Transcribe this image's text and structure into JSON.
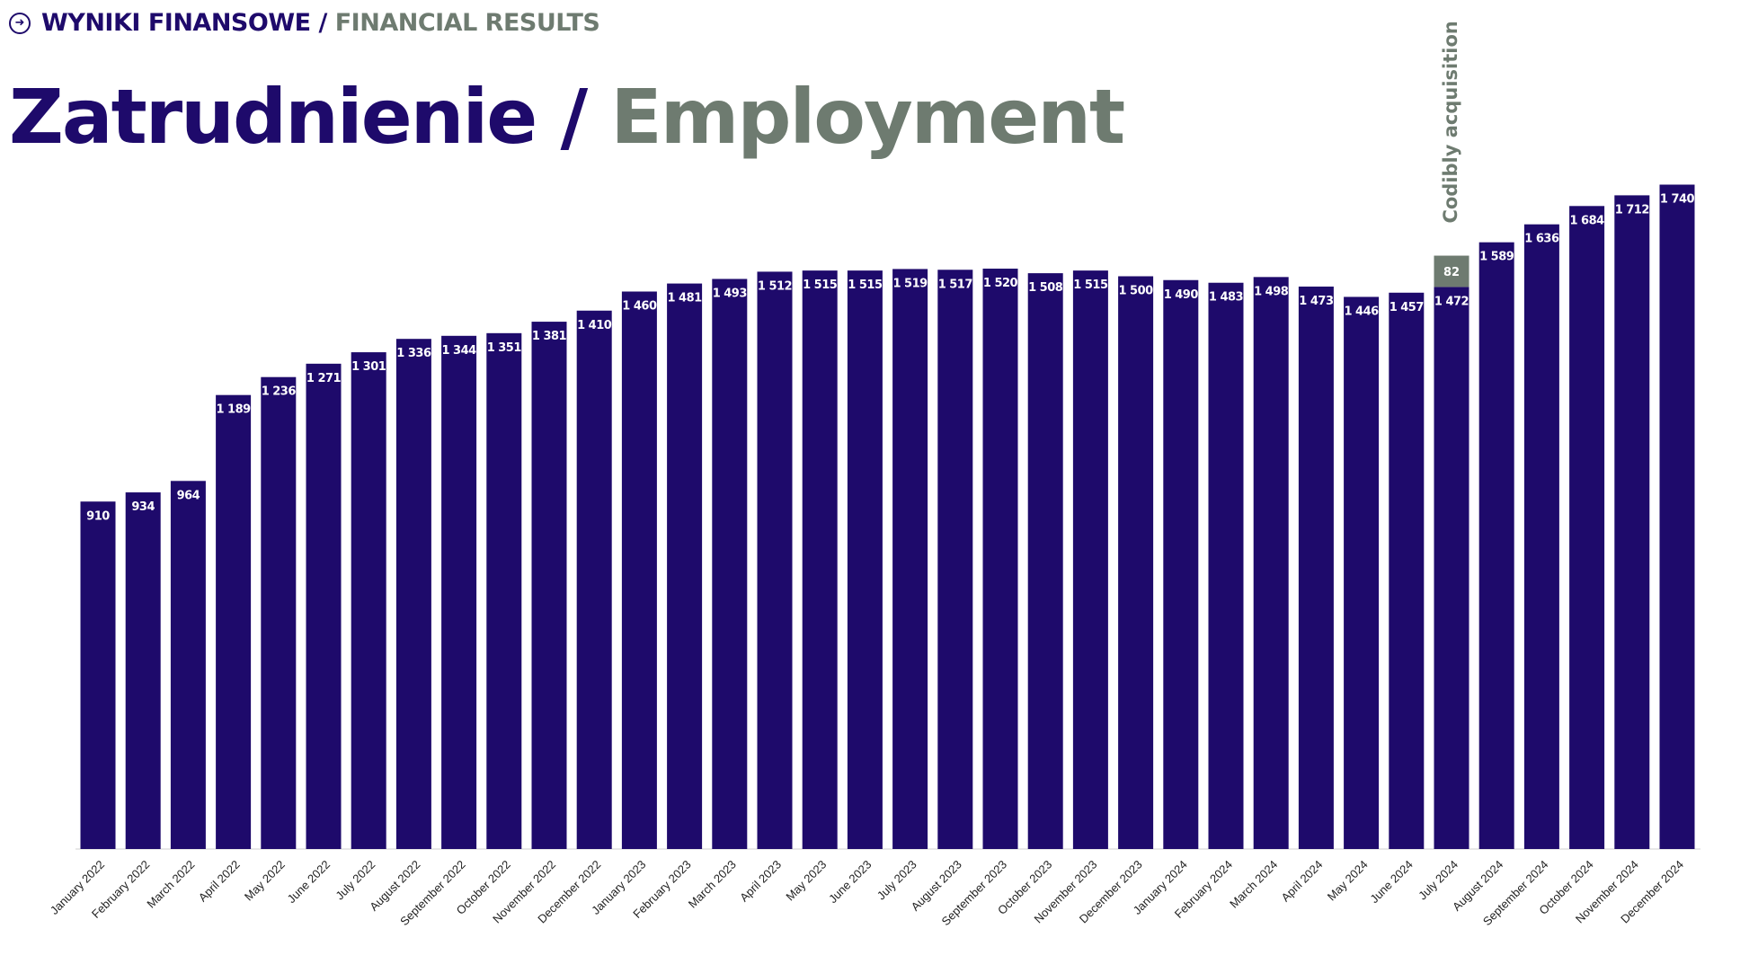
{
  "header": {
    "icon": "arrow-circle-icon",
    "label_pl": "WYNIKI FINANSOWE",
    "separator": "/",
    "label_en": "FINANCIAL RESULTS"
  },
  "title": {
    "pl": "Zatrudnienie",
    "separator": "/",
    "en": "Employment"
  },
  "colors": {
    "primary": "#1e0a6b",
    "accent": "#6e7b70"
  },
  "chart_data": {
    "type": "bar",
    "stacked": true,
    "categories": [
      "January 2022",
      "February 2022",
      "March 2022",
      "April 2022",
      "May 2022",
      "June 2022",
      "July 2022",
      "August 2022",
      "September 2022",
      "October 2022",
      "November 2022",
      "December 2022",
      "January 2023",
      "February 2023",
      "March 2023",
      "April 2023",
      "May 2023",
      "June 2023",
      "July 2023",
      "August 2023",
      "September 2023",
      "October 2023",
      "November 2023",
      "December 2023",
      "January 2024",
      "February 2024",
      "March 2024",
      "April 2024",
      "May 2024",
      "June 2024",
      "July 2024",
      "August 2024",
      "September 2024",
      "October 2024",
      "November 2024",
      "December 2024"
    ],
    "series": [
      {
        "values": [
          910,
          934,
          964,
          1189,
          1236,
          1271,
          1301,
          1336,
          1344,
          1351,
          1381,
          1410,
          1460,
          1481,
          1493,
          1512,
          1515,
          1515,
          1519,
          1517,
          1520,
          1508,
          1515,
          1500,
          1490,
          1483,
          1498,
          1473,
          1446,
          1457,
          1472,
          1589,
          1636,
          1684,
          1712,
          1740
        ],
        "labels": [
          "910",
          "934",
          "964",
          "1 189",
          "1 236",
          "1 271",
          "1 301",
          "1 336",
          "1 344",
          "1 351",
          "1 381",
          "1 410",
          "1 460",
          "1 481",
          "1 493",
          "1 512",
          "1 515",
          "1 515",
          "1 519",
          "1 517",
          "1 520",
          "1 508",
          "1 515",
          "1 500",
          "1 490",
          "1 483",
          "1 498",
          "1 473",
          "1 446",
          "1 457",
          "1 472",
          "1 589",
          "1 636",
          "1 684",
          "1 712",
          "1 740"
        ],
        "color": "#1e0a6b"
      },
      {
        "values": [
          null,
          null,
          null,
          null,
          null,
          null,
          null,
          null,
          null,
          null,
          null,
          null,
          null,
          null,
          null,
          null,
          null,
          null,
          null,
          null,
          null,
          null,
          null,
          null,
          null,
          null,
          null,
          null,
          null,
          null,
          82,
          null,
          null,
          null,
          null,
          null
        ],
        "labels": [
          "",
          "",
          "",
          "",
          "",
          "",
          "",
          "",
          "",
          "",
          "",
          "",
          "",
          "",
          "",
          "",
          "",
          "",
          "",
          "",
          "",
          "",
          "",
          "",
          "",
          "",
          "",
          "",
          "",
          "",
          "82",
          "",
          "",
          "",
          "",
          ""
        ],
        "color": "#6e7b70"
      }
    ],
    "annotation": {
      "text": "Codibly acquisition",
      "category": "July 2024"
    },
    "ylim": [
      0,
      1800
    ],
    "grid": false,
    "legend": "none"
  }
}
